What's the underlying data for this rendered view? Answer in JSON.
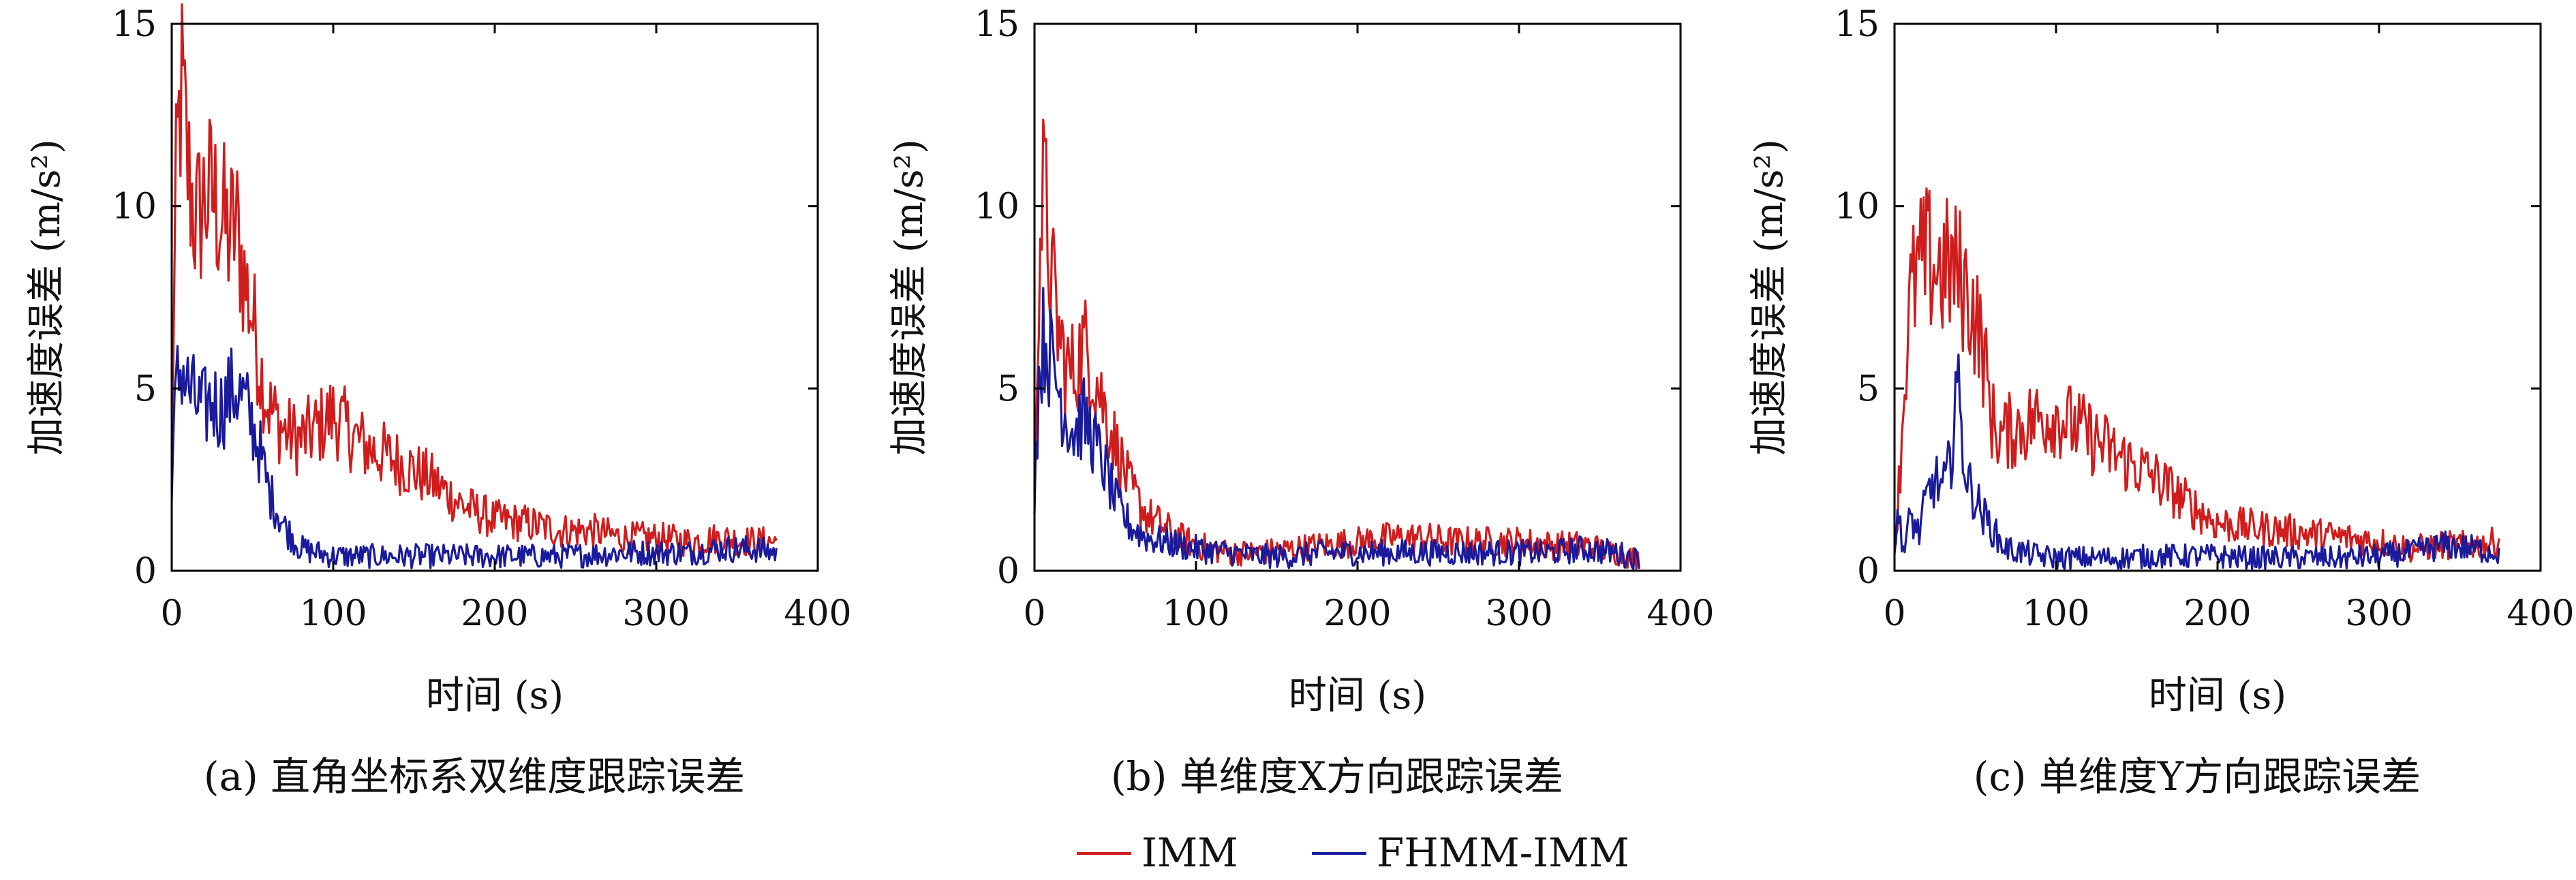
{
  "colors": {
    "imm": "#d01c1c",
    "fhmm": "#1a1a9c"
  },
  "legend": {
    "items": [
      "IMM",
      "FHMM-IMM"
    ]
  },
  "chart_data": [
    {
      "type": "line",
      "caption": "(a) 直角坐标系双维度跟踪误差",
      "xlabel": "时间 (s)",
      "ylabel": "加速度误差 (m/s²)",
      "xlim": [
        0,
        400
      ],
      "ylim": [
        0,
        15
      ],
      "xticks": [
        0,
        100,
        200,
        300,
        400
      ],
      "yticks": [
        0,
        5,
        10,
        15
      ],
      "grid": false,
      "series": [
        {
          "name": "IMM",
          "x": [
            0,
            3,
            6,
            10,
            15,
            20,
            25,
            30,
            35,
            40,
            45,
            50,
            55,
            60,
            70,
            80,
            90,
            100,
            110,
            120,
            140,
            160,
            180,
            200,
            220,
            240,
            260,
            280,
            300,
            320,
            340,
            360,
            375
          ],
          "y": [
            4,
            11,
            13.3,
            11,
            9.5,
            10.2,
            10.3,
            9.8,
            9.2,
            9.5,
            8,
            7,
            5.5,
            4.5,
            3.8,
            3.6,
            3.9,
            4.3,
            3.8,
            3.4,
            3,
            2.5,
            1.8,
            1.4,
            1.3,
            1.1,
            1.1,
            0.9,
            0.9,
            0.8,
            0.9,
            0.8,
            0.8
          ]
        },
        {
          "name": "FHMM-IMM",
          "x": [
            0,
            3,
            6,
            10,
            15,
            20,
            25,
            30,
            35,
            40,
            45,
            50,
            55,
            60,
            70,
            80,
            90,
            100,
            120,
            140,
            160,
            180,
            200,
            220,
            240,
            260,
            280,
            300,
            320,
            340,
            360,
            375
          ],
          "y": [
            2.7,
            5,
            5.7,
            5,
            4.6,
            4.4,
            4.7,
            4.4,
            4.8,
            5,
            4.6,
            4,
            3.2,
            2.2,
            1.2,
            0.6,
            0.5,
            0.4,
            0.4,
            0.4,
            0.4,
            0.4,
            0.4,
            0.4,
            0.4,
            0.45,
            0.5,
            0.5,
            0.5,
            0.6,
            0.6,
            0.5
          ]
        }
      ]
    },
    {
      "type": "line",
      "caption": "(b) 单维度X方向跟踪误差",
      "xlabel": "时间 (s)",
      "ylabel": "加速度误差 (m/s²)",
      "xlim": [
        0,
        400
      ],
      "ylim": [
        0,
        15
      ],
      "xticks": [
        0,
        100,
        200,
        300,
        400
      ],
      "yticks": [
        0,
        5,
        10,
        15
      ],
      "grid": false,
      "series": [
        {
          "name": "IMM",
          "x": [
            0,
            3,
            6,
            10,
            15,
            20,
            25,
            30,
            35,
            40,
            45,
            50,
            55,
            60,
            70,
            80,
            90,
            100,
            120,
            140,
            160,
            180,
            200,
            220,
            240,
            260,
            280,
            300,
            320,
            340,
            360,
            375
          ],
          "y": [
            2.5,
            9,
            10.5,
            8.2,
            6.5,
            5.5,
            5.5,
            6.2,
            5.8,
            5,
            4.2,
            3.5,
            2.8,
            2.2,
            1.5,
            1.2,
            0.9,
            0.7,
            0.5,
            0.5,
            0.6,
            0.7,
            0.8,
            0.9,
            0.9,
            0.8,
            0.8,
            0.8,
            0.7,
            0.7,
            0.5,
            0.3
          ]
        },
        {
          "name": "FHMM-IMM",
          "x": [
            0,
            3,
            6,
            10,
            15,
            20,
            25,
            30,
            35,
            40,
            45,
            50,
            55,
            60,
            70,
            80,
            90,
            100,
            120,
            140,
            160,
            180,
            200,
            220,
            240,
            260,
            280,
            300,
            320,
            340,
            360,
            375
          ],
          "y": [
            2.3,
            5.5,
            6.5,
            5.8,
            5,
            4.2,
            3.8,
            4.2,
            3.8,
            3.2,
            2.6,
            1.9,
            1.5,
            1.2,
            0.9,
            0.8,
            0.7,
            0.6,
            0.5,
            0.4,
            0.4,
            0.5,
            0.5,
            0.5,
            0.5,
            0.5,
            0.5,
            0.5,
            0.5,
            0.6,
            0.5,
            0.3
          ]
        }
      ]
    },
    {
      "type": "line",
      "caption": "(c) 单维度Y方向跟踪误差",
      "xlabel": "时间 (s)",
      "ylabel": "加速度误差 (m/s²)",
      "xlim": [
        0,
        400
      ],
      "ylim": [
        0,
        15
      ],
      "xticks": [
        0,
        100,
        200,
        300,
        400
      ],
      "yticks": [
        0,
        5,
        10,
        15
      ],
      "grid": false,
      "series": [
        {
          "name": "IMM",
          "x": [
            0,
            3,
            6,
            10,
            15,
            20,
            25,
            30,
            35,
            40,
            45,
            50,
            55,
            60,
            65,
            70,
            80,
            90,
            100,
            110,
            120,
            140,
            160,
            180,
            200,
            220,
            240,
            260,
            280,
            300,
            320,
            340,
            360,
            375
          ],
          "y": [
            0.5,
            2.5,
            5,
            7.5,
            8.3,
            8.5,
            8.4,
            8.2,
            8.3,
            8.1,
            7.6,
            7,
            6,
            4.2,
            3.7,
            3.8,
            4,
            4.2,
            4.3,
            4,
            3.7,
            3.1,
            2.6,
            1.9,
            1.3,
            1.2,
            1.1,
            1,
            0.9,
            0.8,
            0.6,
            0.7,
            0.7,
            0.8
          ]
        },
        {
          "name": "FHMM-IMM",
          "x": [
            0,
            3,
            6,
            10,
            15,
            20,
            25,
            30,
            35,
            38,
            42,
            45,
            50,
            55,
            60,
            65,
            70,
            80,
            90,
            100,
            120,
            140,
            160,
            180,
            200,
            220,
            240,
            260,
            280,
            300,
            320,
            340,
            360,
            375
          ],
          "y": [
            0.8,
            1.5,
            0.5,
            1.5,
            1,
            2,
            2.5,
            2.2,
            3,
            5.5,
            3.5,
            2.5,
            2,
            1.5,
            1.2,
            0.8,
            0.6,
            0.5,
            0.4,
            0.35,
            0.35,
            0.35,
            0.4,
            0.4,
            0.4,
            0.35,
            0.35,
            0.35,
            0.35,
            0.4,
            0.5,
            0.7,
            0.6,
            0.5
          ]
        }
      ]
    }
  ]
}
